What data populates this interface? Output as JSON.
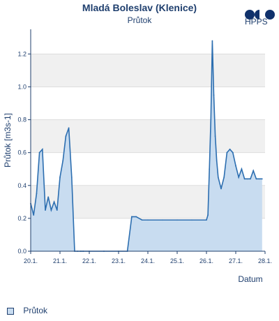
{
  "chart_data": {
    "type": "area",
    "title": "Mladá Boleslav (Klenice)",
    "subtitle": "Průtok",
    "xlabel": "Datum",
    "ylabel": "Průtok [m3s-1]",
    "ylim": [
      0,
      1.35
    ],
    "xlim": [
      20,
      28
    ],
    "y_ticks": [
      "0.0",
      "0.2",
      "0.4",
      "0.6",
      "0.8",
      "1.0",
      "1.2"
    ],
    "x_ticks": [
      "20.1.",
      "21.1.",
      "22.1.",
      "23.1.",
      "24.1.",
      "25.1.",
      "26.1.",
      "27.1.",
      "28.1."
    ],
    "grid": true,
    "legend_position": "bottom-left",
    "series": [
      {
        "name": "Průtok",
        "x": [
          20.0,
          20.1,
          20.2,
          20.3,
          20.4,
          20.5,
          20.6,
          20.7,
          20.8,
          20.9,
          21.0,
          21.1,
          21.2,
          21.3,
          21.4,
          21.5,
          21.6,
          21.7,
          21.75,
          21.8,
          22.0,
          22.5,
          23.0,
          23.3,
          23.45,
          23.6,
          23.8,
          24.0,
          24.5,
          25.0,
          25.5,
          26.0,
          26.05,
          26.1,
          26.15,
          26.2,
          26.25,
          26.3,
          26.35,
          26.4,
          26.5,
          26.6,
          26.7,
          26.8,
          26.9,
          27.0,
          27.1,
          27.2,
          27.3,
          27.4,
          27.5,
          27.6,
          27.7,
          27.8,
          27.9
        ],
        "values": [
          0.29,
          0.22,
          0.35,
          0.6,
          0.62,
          0.25,
          0.33,
          0.25,
          0.3,
          0.25,
          0.45,
          0.55,
          0.7,
          0.75,
          0.45,
          0.0,
          0.0,
          0.0,
          0.0,
          0.0,
          0.0,
          0.0,
          0.0,
          0.0,
          0.21,
          0.21,
          0.19,
          0.19,
          0.19,
          0.19,
          0.19,
          0.19,
          0.22,
          0.5,
          0.8,
          1.28,
          0.95,
          0.7,
          0.55,
          0.45,
          0.38,
          0.45,
          0.6,
          0.62,
          0.6,
          0.52,
          0.45,
          0.5,
          0.44,
          0.44,
          0.44,
          0.49,
          0.44,
          0.44,
          0.44
        ],
        "color": "#2c6eb0",
        "fill": "#c8dcf0"
      }
    ]
  },
  "logo_text": "HPPS",
  "legend_label": "Průtok"
}
